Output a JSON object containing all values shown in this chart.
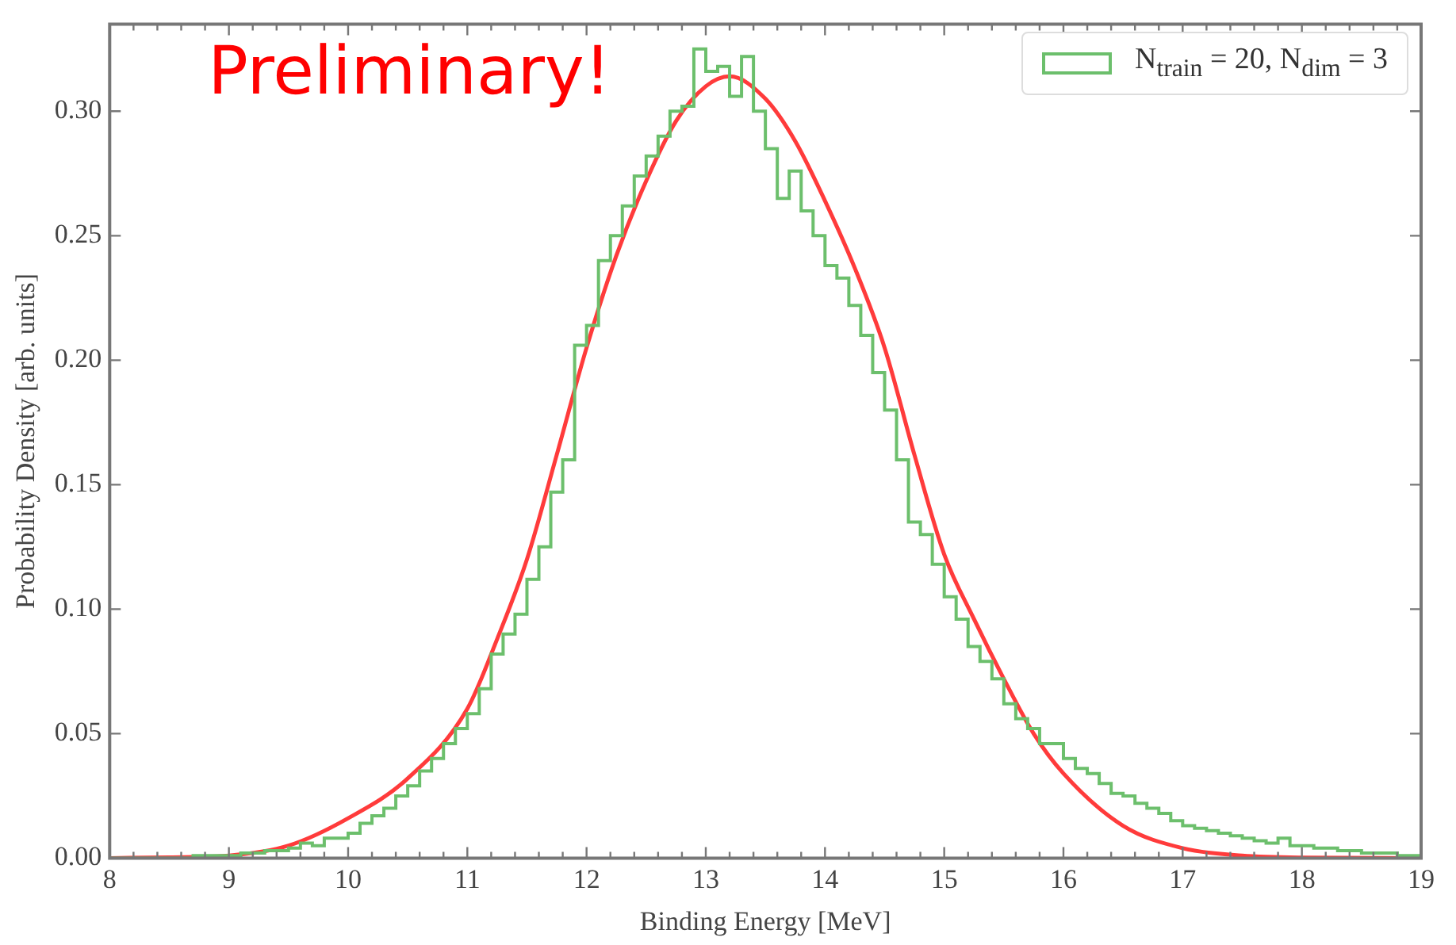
{
  "chart_data": {
    "type": "histogram",
    "xlabel": "Binding Energy [MeV]",
    "ylabel": "Probability Density [arb. units]",
    "annotations": [
      "Preliminary!"
    ],
    "xlim": [
      8,
      19
    ],
    "xticks": [
      8,
      9,
      10,
      11,
      12,
      13,
      14,
      15,
      16,
      17,
      18,
      19
    ],
    "ylim": [
      0,
      0.335
    ],
    "yticks": [
      {
        "value": 0,
        "label": "0.00"
      },
      {
        "value": 0.05,
        "label": "0.05"
      },
      {
        "value": 0.1,
        "label": "0.10"
      },
      {
        "value": 0.15,
        "label": "0.15"
      },
      {
        "value": 0.2,
        "label": "0.20"
      },
      {
        "value": 0.25,
        "label": "0.25"
      },
      {
        "value": 0.3,
        "label": "0.30"
      }
    ],
    "grid": false,
    "legend": "top right",
    "series": [
      {
        "name": "N$_{train}$ = 20, N$_{dim}$ = 3",
        "color": "#6cbf6c",
        "bins": [
          8.0,
          8.1,
          8.2,
          8.3,
          8.4,
          8.5,
          8.6,
          8.7,
          8.8,
          8.9,
          9.0,
          9.1,
          9.2,
          9.3,
          9.4,
          9.5,
          9.6,
          9.7,
          9.8,
          9.9,
          10.0,
          10.1,
          10.2,
          10.3,
          10.4,
          10.5,
          10.6,
          10.7,
          10.8,
          10.9,
          11.0,
          11.1,
          11.2,
          11.3,
          11.4,
          11.5,
          11.6,
          11.7,
          11.8,
          11.9,
          12.0,
          12.1,
          12.2,
          12.3,
          12.4,
          12.5,
          12.6,
          12.7,
          12.8,
          12.9,
          13.0,
          13.1,
          13.2,
          13.3,
          13.4,
          13.5,
          13.6,
          13.7,
          13.8,
          13.9,
          14.0,
          14.1,
          14.2,
          14.3,
          14.4,
          14.5,
          14.6,
          14.7,
          14.8,
          14.9,
          15.0,
          15.1,
          15.2,
          15.3,
          15.4,
          15.5,
          15.6,
          15.7,
          15.8,
          15.9,
          16.0,
          16.1,
          16.2,
          16.3,
          16.4,
          16.5,
          16.6,
          16.7,
          16.8,
          16.9,
          17.0,
          17.1,
          17.2,
          17.3,
          17.4,
          17.5,
          17.6,
          17.7,
          17.8,
          17.9,
          18.0,
          18.1,
          18.2,
          18.3,
          18.4,
          18.5,
          18.6,
          18.7,
          18.8,
          18.9,
          19.0
        ],
        "values": [
          0,
          0,
          0,
          0,
          0,
          0,
          0,
          0.001,
          0.001,
          0.001,
          0.001,
          0.002,
          0.002,
          0.003,
          0.003,
          0.004,
          0.006,
          0.005,
          0.008,
          0.008,
          0.01,
          0.014,
          0.017,
          0.02,
          0.025,
          0.029,
          0.035,
          0.04,
          0.046,
          0.052,
          0.058,
          0.068,
          0.082,
          0.09,
          0.098,
          0.112,
          0.125,
          0.147,
          0.16,
          0.206,
          0.214,
          0.24,
          0.25,
          0.262,
          0.274,
          0.282,
          0.29,
          0.3,
          0.302,
          0.325,
          0.316,
          0.318,
          0.306,
          0.322,
          0.3,
          0.285,
          0.265,
          0.276,
          0.26,
          0.25,
          0.238,
          0.233,
          0.222,
          0.21,
          0.195,
          0.18,
          0.16,
          0.135,
          0.13,
          0.118,
          0.105,
          0.096,
          0.085,
          0.079,
          0.072,
          0.062,
          0.056,
          0.052,
          0.046,
          0.046,
          0.04,
          0.036,
          0.034,
          0.03,
          0.026,
          0.025,
          0.022,
          0.02,
          0.018,
          0.015,
          0.013,
          0.012,
          0.011,
          0.01,
          0.009,
          0.008,
          0.007,
          0.006,
          0.008,
          0.005,
          0.005,
          0.004,
          0.004,
          0.003,
          0.003,
          0.002,
          0.002,
          0.002,
          0.001,
          0.001
        ]
      },
      {
        "type": "line",
        "color": "#ff3b3b",
        "x": [
          8,
          8.5,
          9,
          9.5,
          10,
          10.5,
          11,
          11.25,
          11.5,
          11.75,
          12,
          12.25,
          12.5,
          12.75,
          13,
          13.2,
          13.5,
          13.75,
          14,
          14.25,
          14.5,
          14.75,
          15,
          15.25,
          15.5,
          15.75,
          16,
          16.5,
          17,
          17.5,
          18,
          19
        ],
        "values": [
          0,
          0.0003,
          0.001,
          0.005,
          0.016,
          0.032,
          0.06,
          0.088,
          0.12,
          0.162,
          0.205,
          0.242,
          0.272,
          0.296,
          0.31,
          0.314,
          0.305,
          0.288,
          0.264,
          0.237,
          0.205,
          0.162,
          0.122,
          0.096,
          0.072,
          0.05,
          0.034,
          0.013,
          0.004,
          0.001,
          0.0002,
          0
        ]
      }
    ]
  }
}
